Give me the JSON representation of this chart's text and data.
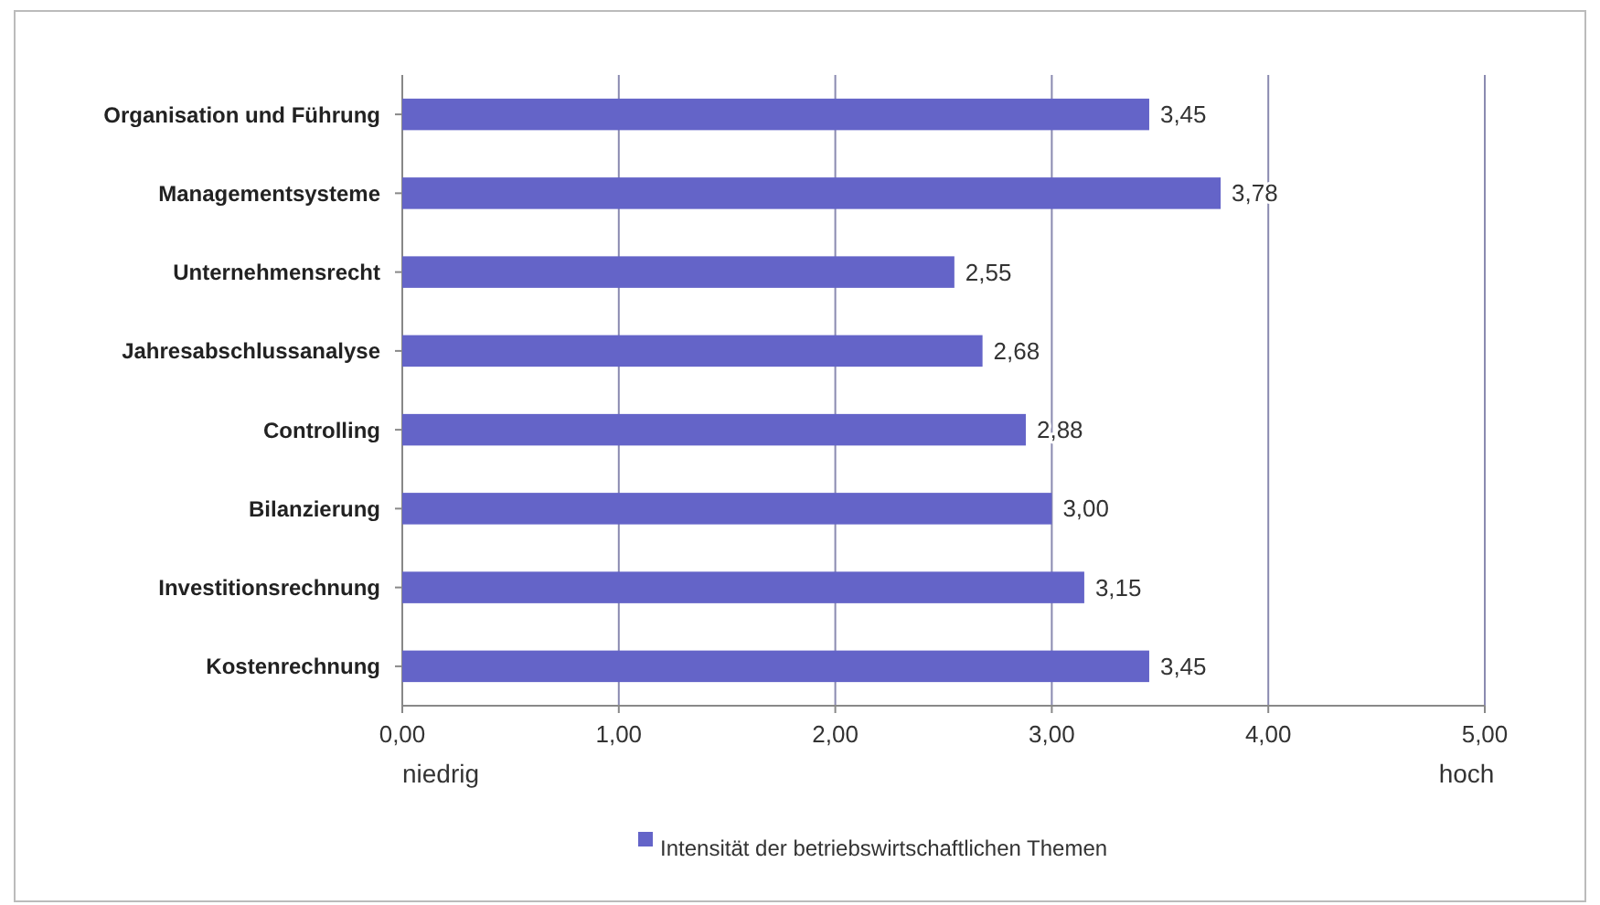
{
  "chart_data": {
    "type": "bar",
    "orientation": "horizontal",
    "categories": [
      "Organisation und Führung",
      "Managementsysteme",
      "Unternehmensrecht",
      "Jahresabschlussanalyse",
      "Controlling",
      "Bilanzierung",
      "Investitionsrechnung",
      "Kostenrechnung"
    ],
    "series": [
      {
        "name": "Intensität der betriebswirtschaftlichen Themen",
        "color": "#6464c8",
        "values": [
          3.45,
          3.78,
          2.55,
          2.68,
          2.88,
          3.0,
          3.15,
          3.45
        ],
        "value_labels": [
          "3,45",
          "3,78",
          "2,55",
          "2,68",
          "2,88",
          "3,00",
          "3,15",
          "3,45"
        ]
      }
    ],
    "xlim": [
      0,
      5
    ],
    "xticks": [
      {
        "value": 0,
        "label": "0,00"
      },
      {
        "value": 1,
        "label": "1,00"
      },
      {
        "value": 2,
        "label": "2,00"
      },
      {
        "value": 3,
        "label": "3,00"
      },
      {
        "value": 4,
        "label": "4,00"
      },
      {
        "value": 5,
        "label": "5,00"
      }
    ],
    "grid": "x",
    "legend": "bottom",
    "annotations": [
      "niedrig",
      "hoch"
    ]
  }
}
